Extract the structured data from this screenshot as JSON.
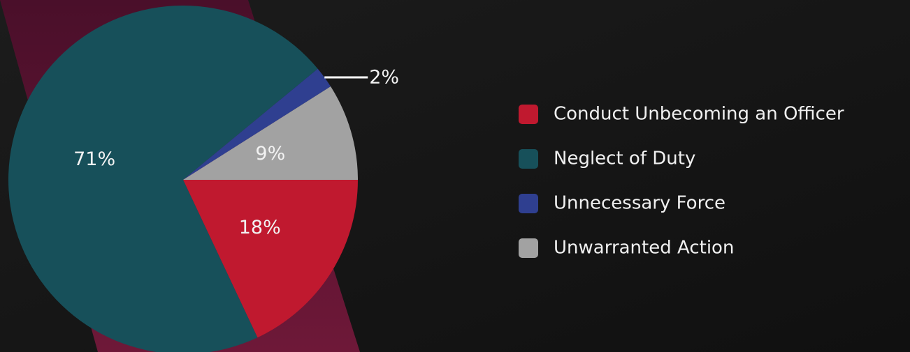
{
  "chart_data": {
    "type": "pie",
    "categories": [
      "Conduct Unbecoming an Officer",
      "Neglect of Duty",
      "Unnecessary Force",
      "Unwarranted Action"
    ],
    "values": [
      18,
      71,
      2,
      9
    ],
    "value_labels": [
      "18%",
      "71%",
      "2%",
      "9%"
    ],
    "colors": [
      "#c0192f",
      "#17505a",
      "#2f3f90",
      "#a2a2a2"
    ],
    "legend": "right"
  }
}
